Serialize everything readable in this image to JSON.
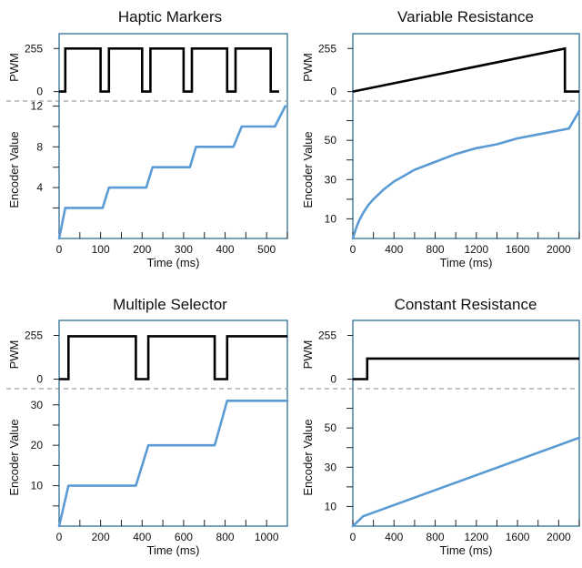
{
  "colors": {
    "pwm": "#000000",
    "encoder": "#5b9bd5",
    "frame": "#2e6f95",
    "divider": "#888888"
  },
  "chart_data": [
    {
      "type": "line",
      "title": "Haptic Markers",
      "xlabel": "Time (ms)",
      "xlim": [
        0,
        550
      ],
      "x_ticks": [
        0,
        100,
        200,
        300,
        400,
        500
      ],
      "x_minor_ticks": [
        50,
        150,
        250,
        350,
        450,
        550
      ],
      "pwm": {
        "ylabel": "PWM",
        "ylim": [
          0,
          255
        ],
        "y_ticks": [
          0,
          255
        ],
        "points": [
          [
            0,
            0
          ],
          [
            15,
            0
          ],
          [
            15,
            255
          ],
          [
            100,
            255
          ],
          [
            100,
            0
          ],
          [
            120,
            0
          ],
          [
            120,
            255
          ],
          [
            200,
            255
          ],
          [
            200,
            0
          ],
          [
            220,
            0
          ],
          [
            220,
            255
          ],
          [
            300,
            255
          ],
          [
            300,
            0
          ],
          [
            320,
            0
          ],
          [
            320,
            255
          ],
          [
            405,
            255
          ],
          [
            405,
            0
          ],
          [
            425,
            0
          ],
          [
            425,
            255
          ],
          [
            510,
            255
          ],
          [
            510,
            0
          ],
          [
            530,
            0
          ]
        ]
      },
      "encoder": {
        "ylabel": "Encoder Value",
        "ylim": [
          -1,
          12.5
        ],
        "y_ticks": [
          4,
          8,
          12
        ],
        "y_minor_ticks": [
          2,
          6,
          10
        ],
        "points": [
          [
            0,
            -1
          ],
          [
            15,
            2
          ],
          [
            105,
            2
          ],
          [
            120,
            4
          ],
          [
            210,
            4
          ],
          [
            225,
            6
          ],
          [
            315,
            6
          ],
          [
            330,
            8
          ],
          [
            420,
            8
          ],
          [
            440,
            10
          ],
          [
            520,
            10
          ],
          [
            545,
            12
          ]
        ]
      }
    },
    {
      "type": "line",
      "title": "Variable Resistance",
      "xlabel": "Time (ms)",
      "xlim": [
        0,
        2200
      ],
      "x_ticks": [
        0,
        400,
        800,
        1200,
        1600,
        2000
      ],
      "x_minor_ticks": [
        200,
        600,
        1000,
        1400,
        1800,
        2200
      ],
      "pwm": {
        "ylabel": "PWM",
        "ylim": [
          0,
          255
        ],
        "y_ticks": [
          0,
          255
        ],
        "points": [
          [
            0,
            0
          ],
          [
            2060,
            255
          ],
          [
            2060,
            0
          ],
          [
            2200,
            0
          ]
        ]
      },
      "encoder": {
        "ylabel": "Encoder Value",
        "ylim": [
          0,
          70
        ],
        "y_ticks": [
          10,
          30,
          50
        ],
        "y_minor_ticks": [
          20,
          40,
          60
        ],
        "points": [
          [
            0,
            0
          ],
          [
            30,
            5
          ],
          [
            60,
            9
          ],
          [
            100,
            13
          ],
          [
            150,
            17
          ],
          [
            200,
            20
          ],
          [
            300,
            25
          ],
          [
            400,
            29
          ],
          [
            500,
            32
          ],
          [
            600,
            35
          ],
          [
            800,
            39
          ],
          [
            1000,
            43
          ],
          [
            1200,
            46
          ],
          [
            1400,
            48
          ],
          [
            1600,
            51
          ],
          [
            1800,
            53
          ],
          [
            2000,
            55
          ],
          [
            2100,
            56
          ],
          [
            2200,
            65
          ]
        ]
      }
    },
    {
      "type": "line",
      "title": "Multiple Selector",
      "xlabel": "Time (ms)",
      "xlim": [
        0,
        1100
      ],
      "x_ticks": [
        0,
        200,
        400,
        600,
        800,
        1000
      ],
      "x_minor_ticks": [
        100,
        300,
        500,
        700,
        900
      ],
      "pwm": {
        "ylabel": "PWM",
        "ylim": [
          0,
          255
        ],
        "y_ticks": [
          0,
          255
        ],
        "points": [
          [
            0,
            0
          ],
          [
            45,
            0
          ],
          [
            45,
            250
          ],
          [
            370,
            250
          ],
          [
            370,
            0
          ],
          [
            430,
            0
          ],
          [
            430,
            250
          ],
          [
            750,
            250
          ],
          [
            750,
            0
          ],
          [
            810,
            0
          ],
          [
            810,
            250
          ],
          [
            1100,
            250
          ]
        ]
      },
      "encoder": {
        "ylabel": "Encoder Value",
        "ylim": [
          0,
          34
        ],
        "y_ticks": [
          10,
          20,
          30
        ],
        "y_minor_ticks": [
          5,
          15,
          25
        ],
        "points": [
          [
            0,
            0
          ],
          [
            45,
            10
          ],
          [
            370,
            10
          ],
          [
            430,
            20
          ],
          [
            750,
            20
          ],
          [
            810,
            31
          ],
          [
            1100,
            31
          ]
        ]
      }
    },
    {
      "type": "line",
      "title": "Constant Resistance",
      "xlabel": "Time (ms)",
      "xlim": [
        0,
        2200
      ],
      "x_ticks": [
        0,
        400,
        800,
        1200,
        1600,
        2000
      ],
      "x_minor_ticks": [
        200,
        600,
        1000,
        1400,
        1800,
        2200
      ],
      "pwm": {
        "ylabel": "PWM",
        "ylim": [
          0,
          255
        ],
        "y_ticks": [
          0,
          255
        ],
        "points": [
          [
            0,
            0
          ],
          [
            140,
            0
          ],
          [
            140,
            120
          ],
          [
            2200,
            120
          ]
        ]
      },
      "encoder": {
        "ylabel": "Encoder Value",
        "ylim": [
          0,
          70
        ],
        "y_ticks": [
          10,
          30,
          50
        ],
        "y_minor_ticks": [
          20,
          40,
          60
        ],
        "points": [
          [
            0,
            0
          ],
          [
            100,
            5
          ],
          [
            2200,
            45
          ]
        ]
      }
    }
  ]
}
